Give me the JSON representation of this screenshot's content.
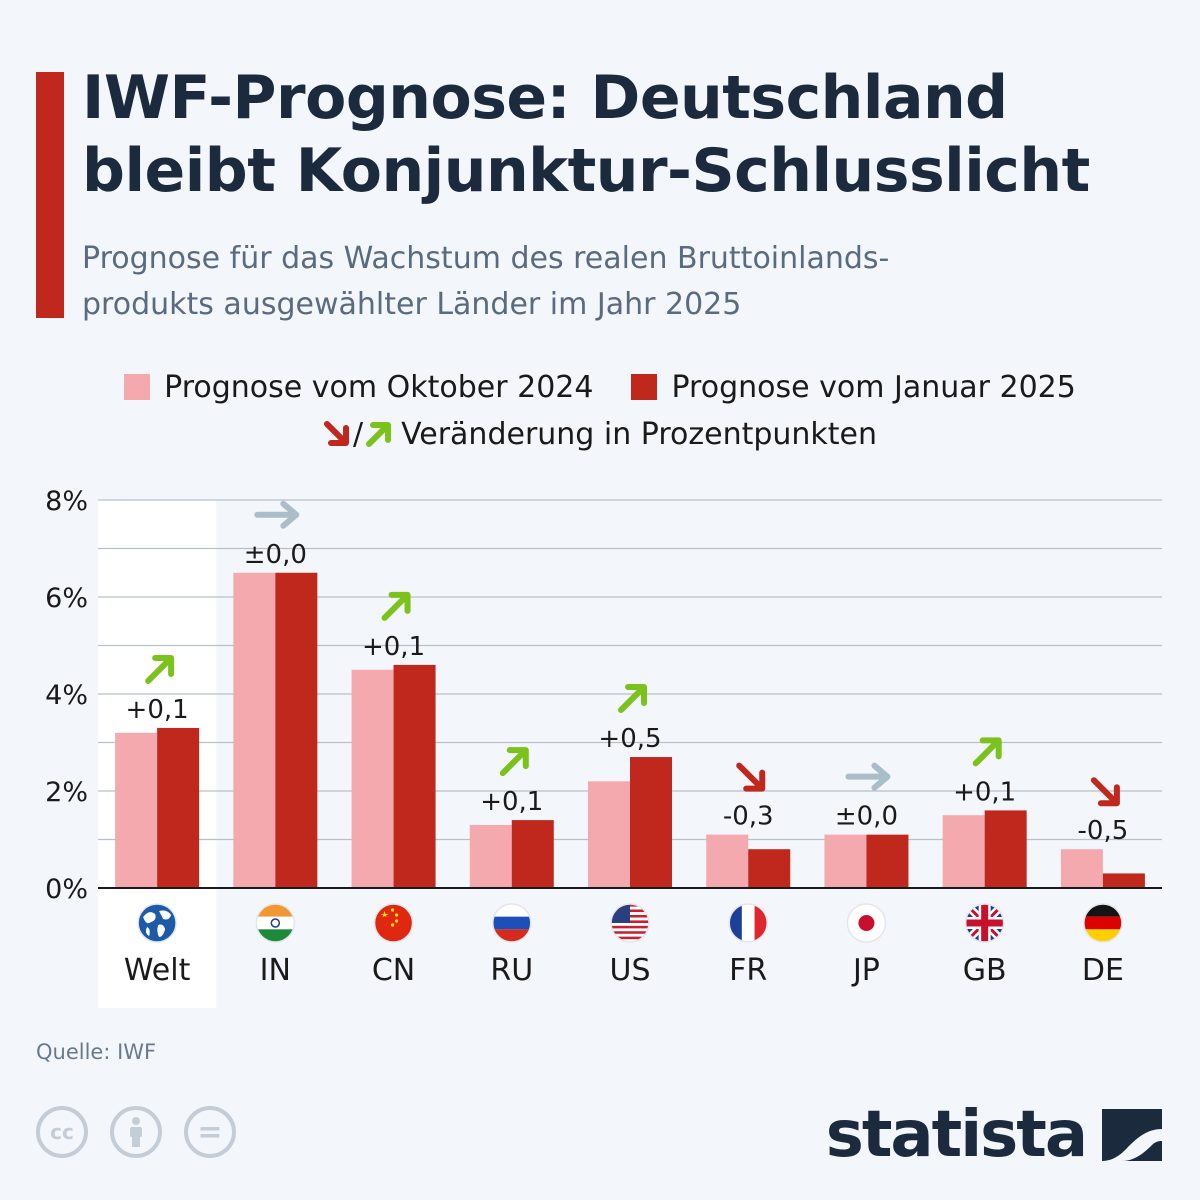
{
  "header": {
    "title_line1": "IWF-Prognose: Deutschland",
    "title_line2": "bleibt Konjunktur-Schlusslicht",
    "subtitle_line1": "Prognose für das Wachstum des realen Bruttoinlands-",
    "subtitle_line2": "produkts ausgewählter Länder im Jahr 2025"
  },
  "legend": {
    "oct_label": "Prognose vom Oktober 2024",
    "jan_label": "Prognose vom Januar 2025",
    "change_label": "Veränderung in Prozentpunkten",
    "slash": "/"
  },
  "colors": {
    "oct": "#f4a9ae",
    "jan": "#c0281e",
    "up": "#7cc21d",
    "down": "#c0281e",
    "flat": "#a9bec8",
    "accent": "#c0281e"
  },
  "chart_data": {
    "type": "bar",
    "categories": [
      "Welt",
      "IN",
      "CN",
      "RU",
      "US",
      "FR",
      "JP",
      "GB",
      "DE"
    ],
    "flag_icons": [
      "globe-icon",
      "india-flag-icon",
      "china-flag-icon",
      "russia-flag-icon",
      "usa-flag-icon",
      "france-flag-icon",
      "japan-flag-icon",
      "uk-flag-icon",
      "germany-flag-icon"
    ],
    "series": [
      {
        "name": "Prognose vom Oktober 2024",
        "values": [
          3.2,
          6.5,
          4.5,
          1.3,
          2.2,
          1.1,
          1.1,
          1.5,
          0.8
        ]
      },
      {
        "name": "Prognose vom Januar 2025",
        "values": [
          3.3,
          6.5,
          4.6,
          1.4,
          2.7,
          0.8,
          1.1,
          1.6,
          0.3
        ]
      }
    ],
    "changes": [
      "+0,1",
      "±0,0",
      "+0,1",
      "+0,1",
      "+0,5",
      "-0,3",
      "±0,0",
      "+0,1",
      "-0,5"
    ],
    "change_direction": [
      "up",
      "flat",
      "up",
      "up",
      "up",
      "down",
      "flat",
      "up",
      "down"
    ],
    "yticks": [
      "0%",
      "2%",
      "4%",
      "6%",
      "8%"
    ],
    "ylim": [
      0,
      8
    ],
    "grid": true,
    "highlighted_category": "Welt"
  },
  "footer": {
    "source": "Quelle: IWF",
    "brand": "statista",
    "license_icons": [
      "cc-icon",
      "by-icon",
      "nd-icon"
    ],
    "cc_text": "cc",
    "nd_text": "="
  }
}
